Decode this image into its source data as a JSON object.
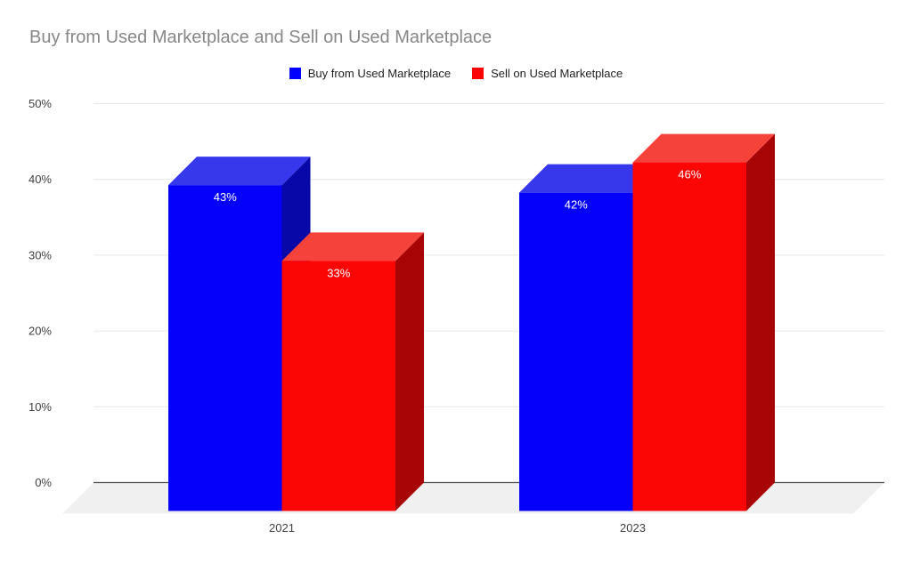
{
  "title": "Buy from Used Marketplace and Sell on Used Marketplace",
  "chart_data": {
    "type": "bar",
    "variant": "3d-column",
    "title": "Buy from Used Marketplace and Sell on Used Marketplace",
    "categories": [
      "2021",
      "2023"
    ],
    "series": [
      {
        "name": "Buy from Used Marketplace",
        "values": [
          43,
          42
        ],
        "color": "#0000FF",
        "faces": {
          "front": "#0400FA",
          "top": "#3737EC",
          "side": "#0808A8"
        }
      },
      {
        "name": "Sell on Used Marketplace",
        "values": [
          33,
          46
        ],
        "color": "#FF0000",
        "faces": {
          "front": "#FB0505",
          "top": "#F5423B",
          "side": "#A80606"
        }
      }
    ],
    "value_labels": [
      "43%",
      "33%",
      "42%",
      "46%"
    ],
    "value_label_suffix": "%",
    "xlabel": "",
    "ylabel": "",
    "y_axis": {
      "min": 0,
      "max": 50,
      "step": 10,
      "ticks": [
        "0%",
        "10%",
        "20%",
        "30%",
        "40%",
        "50%"
      ]
    },
    "grid": true,
    "legend_position": "top",
    "colors": {
      "title_text": "#878787",
      "axis_text": "#404040",
      "legend_text": "#1f1f1f",
      "gridline": "#e6e6e6",
      "axis_line": "#555555",
      "floor": "#f0f0f0",
      "value_label_text": "#ffffff",
      "background": "#ffffff"
    }
  }
}
